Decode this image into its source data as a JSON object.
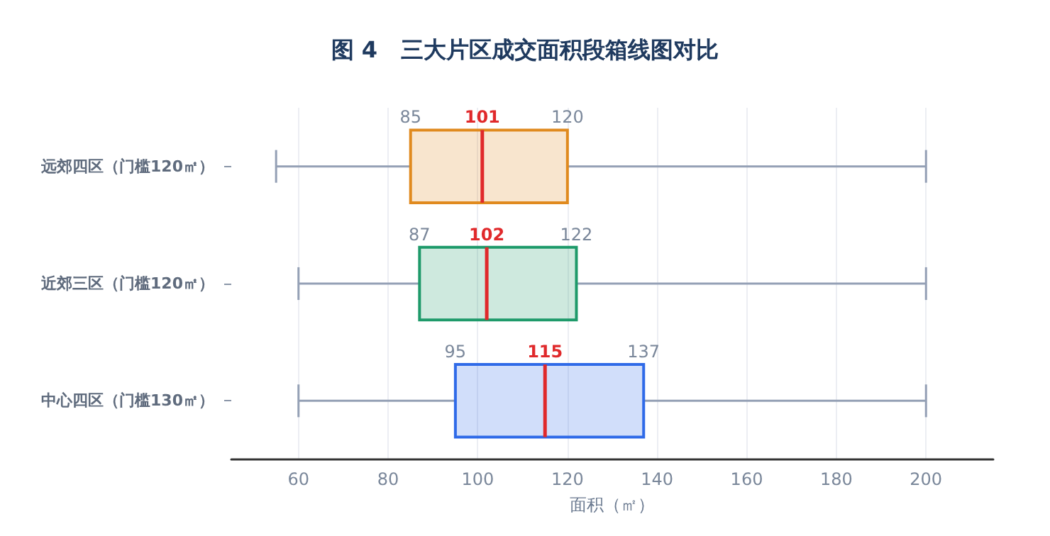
{
  "chart_data": {
    "type": "box",
    "title": "图 4   三大片区成交面积段箱线图对比",
    "xlabel": "面积（㎡）",
    "orientation": "horizontal",
    "categories": [
      "远郊四区（门槛120㎡）",
      "近郊三区（门槛120㎡）",
      "中心四区（门槛130㎡）"
    ],
    "boxes": [
      {
        "low": 55,
        "q1": 85,
        "median": 101,
        "q3": 120,
        "high": 200
      },
      {
        "low": 60,
        "q1": 87,
        "median": 102,
        "q3": 122,
        "high": 200
      },
      {
        "low": 60,
        "q1": 95,
        "median": 115,
        "q3": 137,
        "high": 200
      }
    ],
    "colors": [
      "#e08a1e",
      "#1e9a6a",
      "#2f6ae8"
    ],
    "xlim": [
      45,
      215
    ],
    "xticks": [
      60,
      80,
      100,
      120,
      140,
      160,
      180,
      200
    ],
    "grid": "x",
    "annotations": [
      {
        "text": "85",
        "x": 85,
        "y": "远郊四区（门槛120㎡）"
      },
      {
        "text": "101",
        "x": 101,
        "y": "远郊四区（门槛120㎡）"
      },
      {
        "text": "120",
        "x": 120,
        "y": "远郊四区（门槛120㎡）"
      },
      {
        "text": "87",
        "x": 87,
        "y": "近郊三区（门槛120㎡）"
      },
      {
        "text": "102",
        "x": 102,
        "y": "近郊三区（门槛120㎡）"
      },
      {
        "text": "122",
        "x": 122,
        "y": "近郊三区（门槛120㎡）"
      },
      {
        "text": "95",
        "x": 95,
        "y": "中心四区（门槛130㎡）"
      },
      {
        "text": "115",
        "x": 115,
        "y": "中心四区（门槛130㎡）"
      },
      {
        "text": "137",
        "x": 137,
        "y": "中心四区（门槛130㎡）"
      }
    ]
  }
}
